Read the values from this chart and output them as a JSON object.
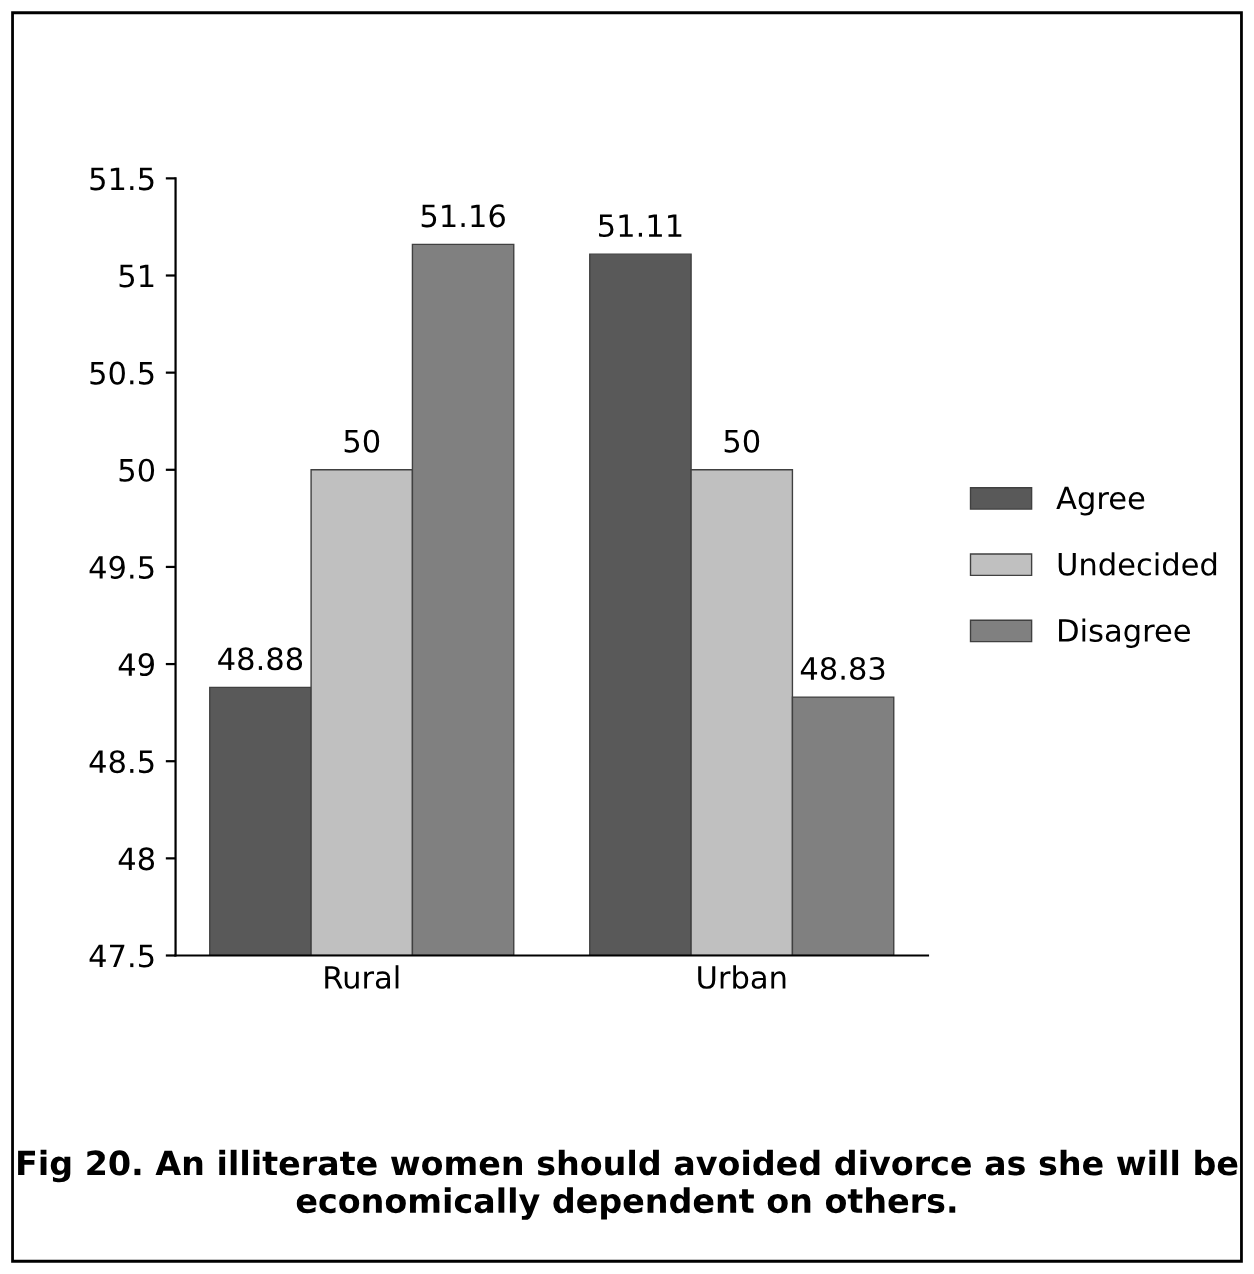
{
  "chart_data": {
    "type": "bar",
    "title": "Fig 20. An illiterate women should avoided divorce as she will be economically dependent on others.",
    "categories": [
      "Rural",
      "Urban"
    ],
    "series": [
      {
        "name": "Agree",
        "color": "#595959",
        "values": [
          48.88,
          51.11
        ]
      },
      {
        "name": "Undecided",
        "color": "#c0c0c0",
        "values": [
          50,
          50
        ]
      },
      {
        "name": "Disagree",
        "color": "#808080",
        "values": [
          51.16,
          48.83
        ]
      }
    ],
    "ylim": [
      47.5,
      51.5
    ],
    "yticks": [
      47.5,
      48,
      48.5,
      49,
      49.5,
      50,
      50.5,
      51,
      51.5
    ],
    "data_labels": true,
    "legend": "right",
    "grid": false
  }
}
